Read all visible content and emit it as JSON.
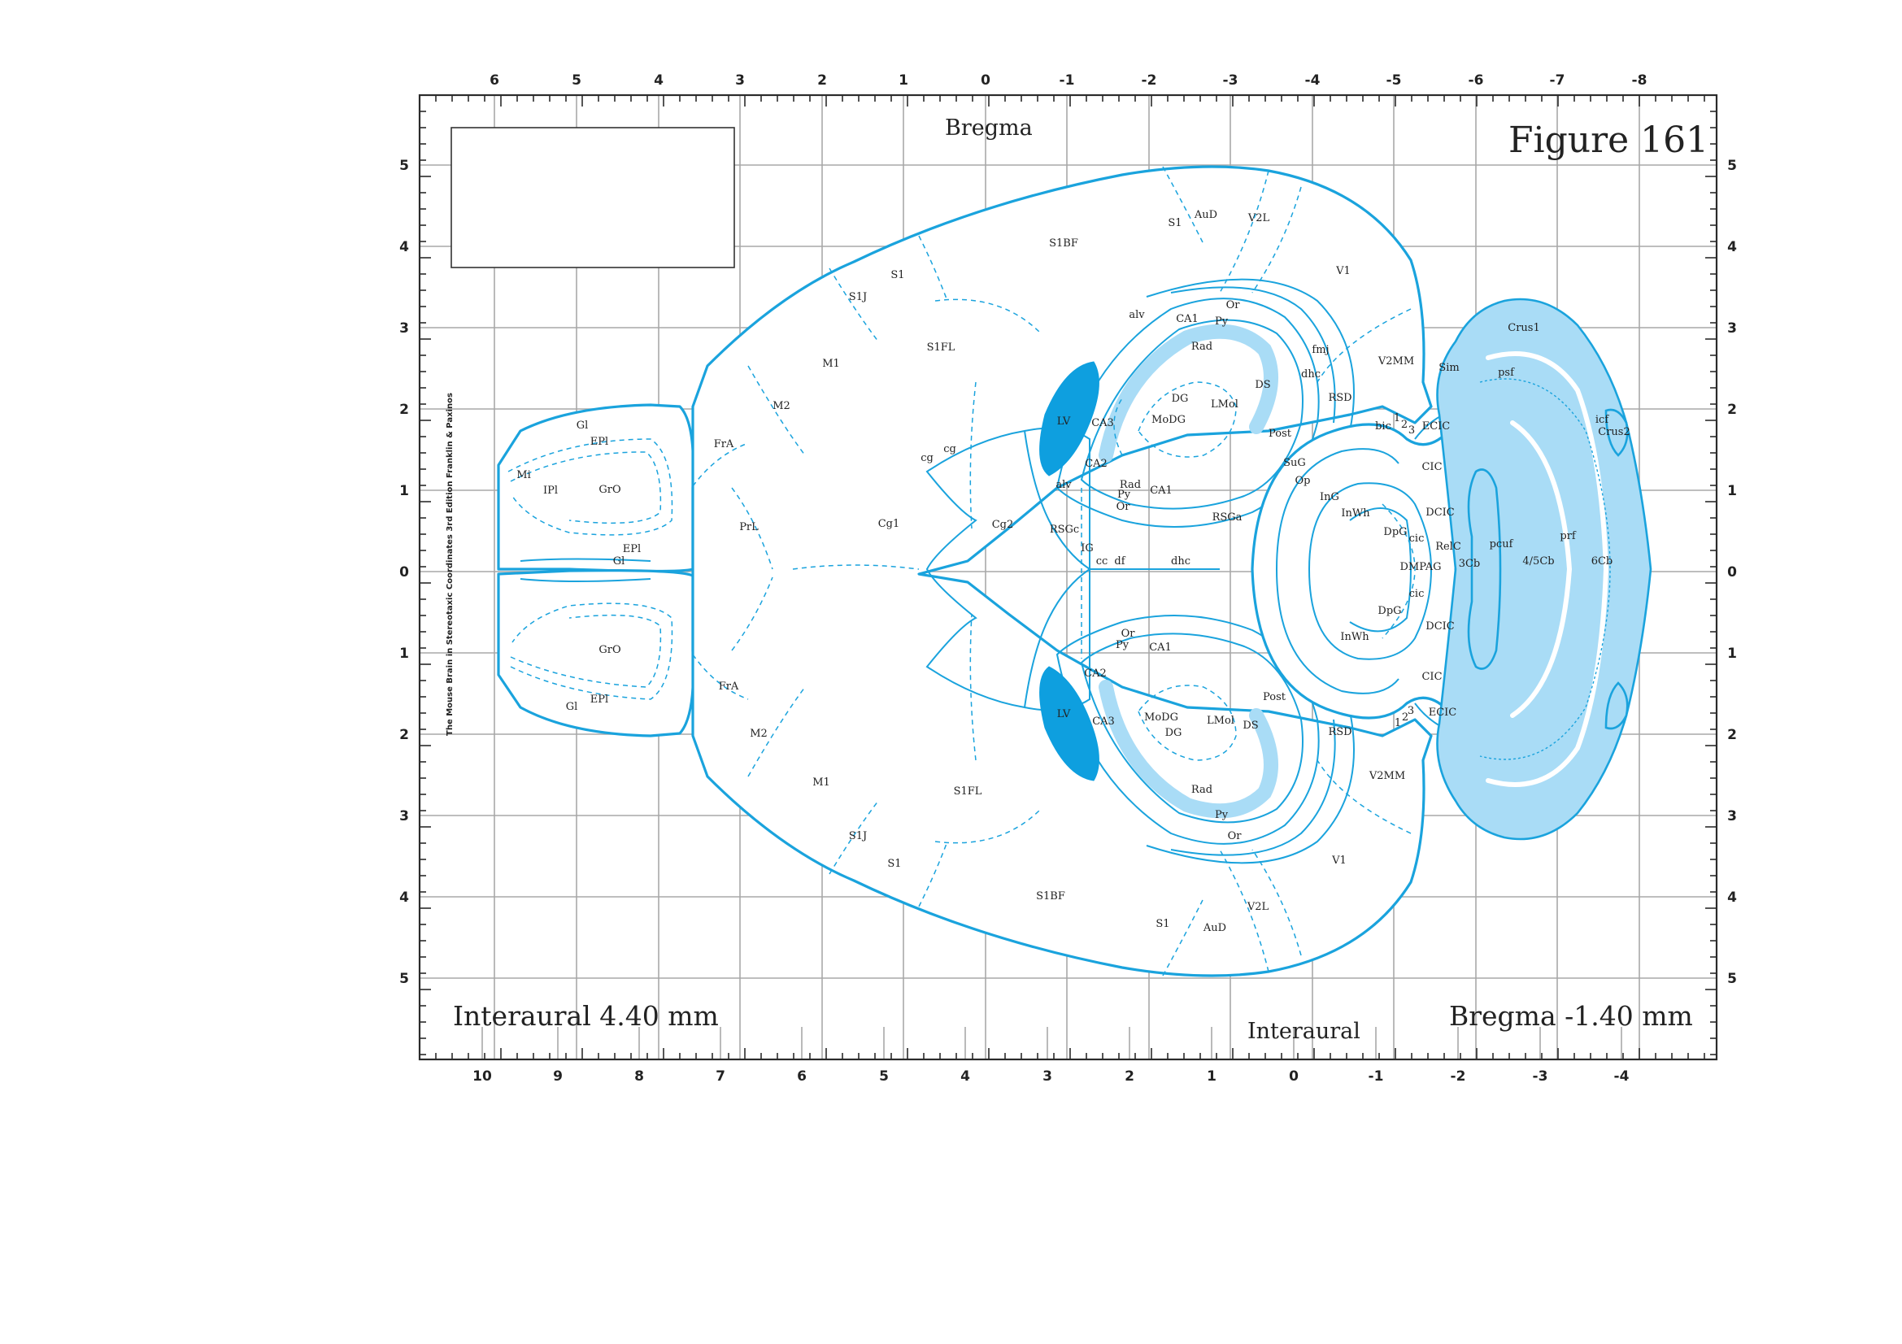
{
  "figure_title": "Figure 161",
  "top_header": "Bregma",
  "caption_left": "Interaural 4.40 mm",
  "caption_right": "Bregma -1.40 mm",
  "bottom_header": "Interaural",
  "credit": "The Mouse Brain in Stereotaxic Coordinates 3rd Edition  Franklin & Paxinos",
  "axes": {
    "top": [
      "6",
      "5",
      "4",
      "3",
      "2",
      "1",
      "0",
      "-1",
      "-2",
      "-3",
      "-4",
      "-5",
      "-6",
      "-7",
      "-8"
    ],
    "bottom": [
      "10",
      "9",
      "8",
      "7",
      "6",
      "5",
      "4",
      "3",
      "2",
      "1",
      "0",
      "-1",
      "-2",
      "-3",
      "-4"
    ],
    "left": [
      "5",
      "4",
      "3",
      "2",
      "1",
      "0",
      "1",
      "2",
      "3",
      "4",
      "5"
    ],
    "right": [
      "5",
      "4",
      "3",
      "2",
      "1",
      "0",
      "1",
      "2",
      "3",
      "4",
      "5"
    ]
  },
  "colors": {
    "outline": "#1aa3dd",
    "ventricle": "#0e9fdf",
    "shade": "#a9dcf6",
    "grid": "#a8a8a8",
    "frame": "#2b2b2b"
  },
  "regions_upper": {
    "gl": "Gl",
    "epl": "EPl",
    "mi": "Mi",
    "ipl": "IPl",
    "gro": "GrO",
    "epl2": "EPl",
    "gl2": "Gl",
    "fra": "FrA",
    "prl": "PrL",
    "m2": "M2",
    "m1": "M1",
    "s1j": "S1J",
    "s1": "S1",
    "s1fl": "S1FL",
    "s1bf": "S1BF",
    "s1b": "S1",
    "aud": "AuD",
    "v2l": "V2L",
    "v1": "V1",
    "cg1": "Cg1",
    "cg2": "Cg2",
    "cg": "cg",
    "cgb": "cg",
    "rsgc": "RSGc",
    "ig": "IG",
    "cc": "cc",
    "df": "df",
    "dhc": "dhc",
    "rsga": "RSGa",
    "lv": "LV",
    "alv": "alv",
    "alv2": "alv",
    "or": "Or",
    "ca1": "CA1",
    "py": "Py",
    "rad": "Rad",
    "dg": "DG",
    "modg": "MoDG",
    "lmol": "LMol",
    "ca3": "CA3",
    "ca2": "CA2",
    "rad2": "Rad",
    "py2": "Py",
    "or2": "Or",
    "ca1b": "CA1",
    "ds": "DS",
    "fmj": "fmj",
    "dhc2": "dhc",
    "v2mm": "V2MM",
    "rsd": "RSD",
    "post": "Post",
    "sug": "SuG",
    "op": "Op",
    "ing": "InG",
    "inwh": "InWh",
    "dpg": "DpG",
    "cic": "cic",
    "dcic": "DCIC",
    "bic": "bic",
    "n1": "1",
    "n2": "2",
    "n3": "3",
    "ecic": "ECIC",
    "cic2": "CIC",
    "sim": "Sim",
    "crus1": "Crus1",
    "psf": "psf",
    "icf": "icf",
    "crus2": "Crus2"
  },
  "regions_mid": {
    "relc": "RelC",
    "dmpag": "DMPAG",
    "cb3": "3Cb",
    "pcuf": "pcuf",
    "prf": "prf",
    "cb45": "4/5Cb",
    "cb6": "6Cb"
  },
  "regions_lower": {
    "gro": "GrO",
    "epl": "EPl",
    "gl": "Gl",
    "fra": "FrA",
    "m2": "M2",
    "m1": "M1",
    "s1j": "S1J",
    "s1": "S1",
    "s1fl": "S1FL",
    "s1bf": "S1BF",
    "s1b": "S1",
    "aud": "AuD",
    "v2l": "V2L",
    "v1": "V1",
    "or": "Or",
    "py": "Py",
    "ca1": "CA1",
    "ca2": "CA2",
    "lv": "LV",
    "ca3": "CA3",
    "modg": "MoDG",
    "dg": "DG",
    "lmol": "LMol",
    "ds": "DS",
    "rad": "Rad",
    "py2": "Py",
    "or2": "Or",
    "post": "Post",
    "rsd": "RSD",
    "v2mm": "V2MM",
    "inwh": "InWh",
    "dpg": "DpG",
    "cic": "cic",
    "dcic": "DCIC",
    "cic2": "CIC",
    "ecic": "ECIC",
    "n1": "1",
    "n2": "2",
    "n3": "3"
  }
}
